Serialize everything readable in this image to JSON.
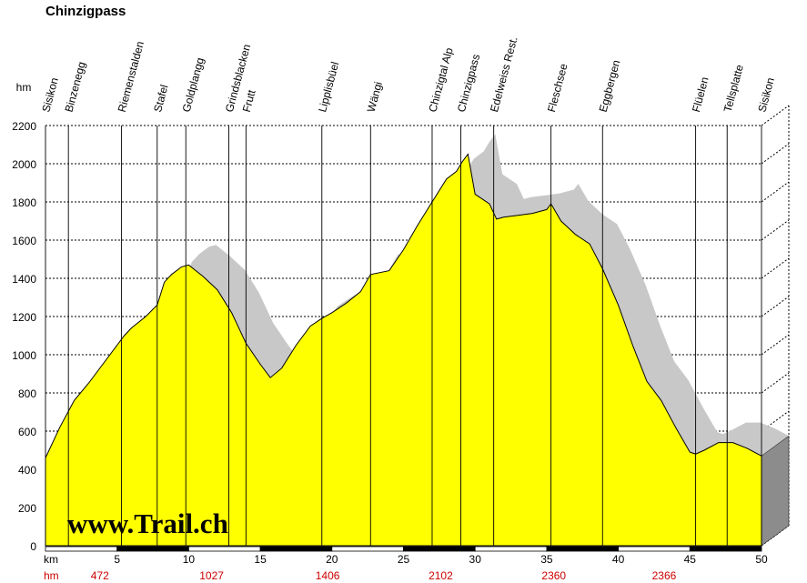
{
  "title": "Chinzigpass",
  "watermark": "www.Trail.ch",
  "colors": {
    "fill": "#ffff00",
    "shadow": "#c8c8c8",
    "axis_red": "#cc0000"
  },
  "chart_data": {
    "type": "area",
    "title": "Chinzigpass",
    "xlabel": "km",
    "ylabel": "hm",
    "xlim": [
      0,
      50
    ],
    "ylim": [
      0,
      2200
    ],
    "grid": true,
    "x_ticks": [
      5,
      10,
      15,
      20,
      25,
      30,
      35,
      40,
      45,
      50
    ],
    "y_ticks": [
      0,
      200,
      400,
      600,
      800,
      1000,
      1200,
      1400,
      1600,
      1800,
      2000,
      2200
    ],
    "cumulative_ascent_label": "hm",
    "cumulative_ascent": [
      {
        "km": 3.8,
        "value": "472"
      },
      {
        "km": 11.6,
        "value": "1027"
      },
      {
        "km": 19.7,
        "value": "1406"
      },
      {
        "km": 27.6,
        "value": "2102"
      },
      {
        "km": 35.5,
        "value": "2360"
      },
      {
        "km": 43.2,
        "value": "2366"
      }
    ],
    "waypoints": [
      {
        "name": "Sisikon",
        "km": 0
      },
      {
        "name": "Binzenegg",
        "km": 1.6
      },
      {
        "name": "Riemenstalden",
        "km": 5.3
      },
      {
        "name": "Stafel",
        "km": 7.8
      },
      {
        "name": "Goldplangg",
        "km": 9.8
      },
      {
        "name": "Grindsblacken",
        "km": 12.8
      },
      {
        "name": "Frutt",
        "km": 14.0
      },
      {
        "name": "Lipplisbüel",
        "km": 19.3
      },
      {
        "name": "Wängi",
        "km": 22.7
      },
      {
        "name": "Chinzigtal Alp",
        "km": 27.0
      },
      {
        "name": "Chinzigpass",
        "km": 29.0
      },
      {
        "name": "Edelweiss Rest.",
        "km": 31.3
      },
      {
        "name": "Fleschsee",
        "km": 35.3
      },
      {
        "name": "Eggbergen",
        "km": 38.9
      },
      {
        "name": "Flüelen",
        "km": 45.4
      },
      {
        "name": "Tellsplatte",
        "km": 47.6
      },
      {
        "name": "Sisikon",
        "km": 50
      }
    ],
    "series": [
      {
        "x": [
          0,
          1,
          2,
          3,
          4,
          5,
          5.5,
          6,
          7,
          7.8,
          8.3,
          8.8,
          9.5,
          10,
          10.5,
          11,
          12,
          13,
          14,
          15,
          15.7,
          16.5,
          17.5,
          18.5,
          19.3,
          20,
          21,
          22,
          22.7,
          24,
          25,
          26,
          27,
          28,
          28.7,
          29.1,
          29.5,
          30,
          31,
          31.5,
          32,
          33,
          34,
          35,
          35.3,
          36,
          37,
          38,
          38.9,
          40,
          41,
          42,
          43,
          44,
          45,
          45.4,
          46,
          47,
          48,
          49,
          50
        ],
        "values": [
          460,
          620,
          760,
          850,
          950,
          1050,
          1100,
          1140,
          1200,
          1260,
          1380,
          1420,
          1460,
          1470,
          1440,
          1410,
          1340,
          1220,
          1060,
          950,
          880,
          930,
          1050,
          1150,
          1190,
          1220,
          1270,
          1330,
          1420,
          1440,
          1550,
          1680,
          1800,
          1920,
          1960,
          2010,
          2050,
          1840,
          1790,
          1710,
          1720,
          1730,
          1740,
          1760,
          1790,
          1700,
          1630,
          1580,
          1450,
          1260,
          1050,
          860,
          760,
          620,
          490,
          480,
          500,
          540,
          540,
          510,
          470
        ]
      }
    ]
  }
}
